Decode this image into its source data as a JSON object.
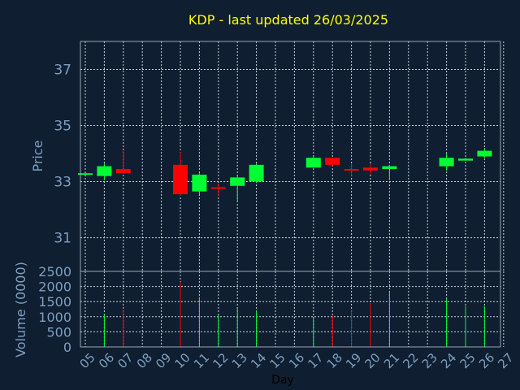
{
  "title": "KDP - last updated 26/03/2025",
  "colors": {
    "background": "#0f1e30",
    "title": "#ffff00",
    "up": "#00ff33",
    "down": "#ff0000",
    "axis_text": "#7f9fbf",
    "grid": "#c8d2dc",
    "xlabel": "#000000"
  },
  "chart_data": [
    {
      "type": "candlestick",
      "ylabel": "Price",
      "ylim": [
        29.8,
        38.0
      ],
      "yticks": [
        31,
        33,
        35,
        37
      ],
      "grid": true,
      "x_day_range": [
        5,
        27
      ],
      "candles": [
        {
          "day": 5,
          "open": 33.3,
          "high": 33.3,
          "low": 33.3,
          "close": 33.3
        },
        {
          "day": 6,
          "open": 33.2,
          "high": 33.65,
          "low": 33.05,
          "close": 33.55
        },
        {
          "day": 7,
          "open": 33.45,
          "high": 34.1,
          "low": 33.3,
          "close": 33.3
        },
        {
          "day": 10,
          "open": 33.6,
          "high": 34.05,
          "low": 32.5,
          "close": 32.55
        },
        {
          "day": 11,
          "open": 32.65,
          "high": 33.3,
          "low": 32.55,
          "close": 33.25
        },
        {
          "day": 12,
          "open": 32.8,
          "high": 32.95,
          "low": 32.5,
          "close": 32.75
        },
        {
          "day": 13,
          "open": 32.85,
          "high": 33.2,
          "low": 32.3,
          "close": 33.15
        },
        {
          "day": 14,
          "open": 33.0,
          "high": 33.65,
          "low": 32.95,
          "close": 33.6
        },
        {
          "day": 17,
          "open": 33.5,
          "high": 33.9,
          "low": 33.5,
          "close": 33.85
        },
        {
          "day": 18,
          "open": 33.85,
          "high": 33.85,
          "low": 33.55,
          "close": 33.6
        },
        {
          "day": 19,
          "open": 33.45,
          "high": 33.65,
          "low": 33.2,
          "close": 33.4
        },
        {
          "day": 20,
          "open": 33.5,
          "high": 33.65,
          "low": 33.25,
          "close": 33.4
        },
        {
          "day": 21,
          "open": 33.45,
          "high": 33.6,
          "low": 33.05,
          "close": 33.55
        },
        {
          "day": 24,
          "open": 33.55,
          "high": 34.0,
          "low": 33.4,
          "close": 33.85
        },
        {
          "day": 25,
          "open": 33.75,
          "high": 33.85,
          "low": 33.75,
          "close": 33.82
        },
        {
          "day": 26,
          "open": 33.9,
          "high": 34.2,
          "low": 33.85,
          "close": 34.1
        }
      ]
    },
    {
      "type": "bar",
      "ylabel": "Volume (0000)",
      "xlabel": "Day",
      "ylim": [
        0,
        2500
      ],
      "yticks": [
        0,
        500,
        1000,
        1500,
        2000,
        2500
      ],
      "grid": true,
      "xticks": [
        "05",
        "06",
        "07",
        "08",
        "09",
        "10",
        "11",
        "12",
        "13",
        "14",
        "15",
        "16",
        "17",
        "18",
        "19",
        "20",
        "21",
        "22",
        "23",
        "24",
        "25",
        "26",
        "27"
      ],
      "bars": [
        {
          "day": 6,
          "value": 1100,
          "direction": "up"
        },
        {
          "day": 7,
          "value": 1200,
          "direction": "down"
        },
        {
          "day": 10,
          "value": 2150,
          "direction": "down"
        },
        {
          "day": 11,
          "value": 1650,
          "direction": "up"
        },
        {
          "day": 12,
          "value": 1050,
          "direction": "up"
        },
        {
          "day": 13,
          "value": 1300,
          "direction": "up"
        },
        {
          "day": 14,
          "value": 1200,
          "direction": "up"
        },
        {
          "day": 17,
          "value": 950,
          "direction": "up"
        },
        {
          "day": 18,
          "value": 1050,
          "direction": "down"
        },
        {
          "day": 19,
          "value": 1200,
          "direction": "down"
        },
        {
          "day": 20,
          "value": 1450,
          "direction": "down"
        },
        {
          "day": 21,
          "value": 1800,
          "direction": "up"
        },
        {
          "day": 24,
          "value": 1600,
          "direction": "up"
        },
        {
          "day": 25,
          "value": 1350,
          "direction": "up"
        },
        {
          "day": 26,
          "value": 1350,
          "direction": "up"
        }
      ]
    }
  ]
}
